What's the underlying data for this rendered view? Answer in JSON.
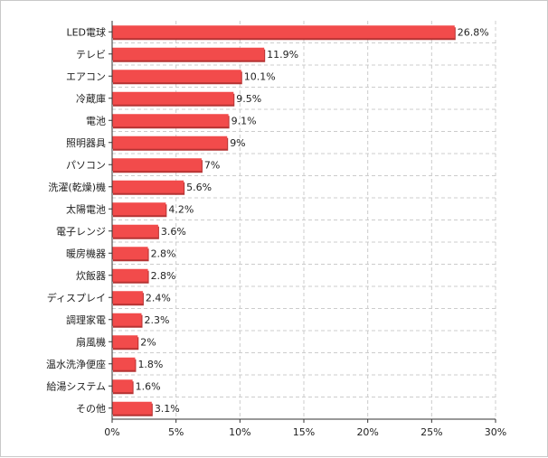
{
  "chart_data": {
    "type": "bar",
    "orientation": "horizontal",
    "title": "",
    "xlabel": "",
    "ylabel": "",
    "xlim": [
      0,
      30
    ],
    "grid": true,
    "categories": [
      "LED電球",
      "テレビ",
      "エアコン",
      "冷蔵庫",
      "電池",
      "照明器具",
      "パソコン",
      "洗濯(乾燥)機",
      "太陽電池",
      "電子レンジ",
      "暖房機器",
      "炊飯器",
      "ディスプレイ",
      "調理家電",
      "扇風機",
      "温水洗浄便座",
      "給湯システム",
      "その他"
    ],
    "values": [
      26.8,
      11.9,
      10.1,
      9.5,
      9.1,
      9,
      7,
      5.6,
      4.2,
      3.6,
      2.8,
      2.8,
      2.4,
      2.3,
      2,
      1.8,
      1.6,
      3.1
    ],
    "value_labels": [
      "26.8%",
      "11.9%",
      "10.1%",
      "9.5%",
      "9.1%",
      "9%",
      "7%",
      "5.6%",
      "4.2%",
      "3.6%",
      "2.8%",
      "2.8%",
      "2.4%",
      "2.3%",
      "2%",
      "1.8%",
      "1.6%",
      "3.1%"
    ],
    "ticks": [
      0,
      5,
      10,
      15,
      20,
      25,
      30
    ],
    "tick_labels": [
      "0%",
      "5%",
      "10%",
      "15%",
      "20%",
      "25%",
      "30%"
    ],
    "bar_color": "#f24b4b",
    "bar_shadow_color": "#b53333",
    "grid_color": "#cccccc"
  }
}
